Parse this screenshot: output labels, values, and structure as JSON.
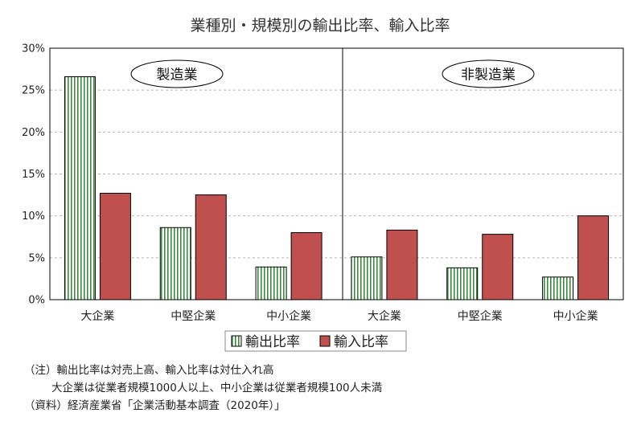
{
  "chart_data": {
    "type": "bar",
    "title": "業種別・規模別の輸出比率、輸入比率",
    "groups": [
      {
        "label": "製造業",
        "categories": [
          "大企業",
          "中堅企業",
          "中小企業"
        ]
      },
      {
        "label": "非製造業",
        "categories": [
          "大企業",
          "中堅企業",
          "中小企業"
        ]
      }
    ],
    "categories": [
      "大企業",
      "中堅企業",
      "中小企業",
      "大企業",
      "中堅企業",
      "中小企業"
    ],
    "series": [
      {
        "name": "輸出比率",
        "values": [
          26.6,
          8.6,
          3.9,
          5.1,
          3.8,
          2.7
        ],
        "color": "#2e7d32",
        "pattern": "vertical-stripes"
      },
      {
        "name": "輸入比率",
        "values": [
          12.7,
          12.5,
          8.0,
          8.3,
          7.8,
          10.0
        ],
        "color": "#c0504d"
      }
    ],
    "yticks": [
      "0%",
      "5%",
      "10%",
      "15%",
      "20%",
      "25%",
      "30%"
    ],
    "ylim": [
      0,
      30
    ],
    "grid": true,
    "legend": "bottom-center"
  },
  "notes": [
    "（注）輸出比率は対売上高、輸入比率は対仕入れ高",
    "大企業は従業者規模1000人以上、中小企業は従業者規模100人未満",
    "（資料）経済産業省「企業活動基本調査（2020年）」"
  ]
}
